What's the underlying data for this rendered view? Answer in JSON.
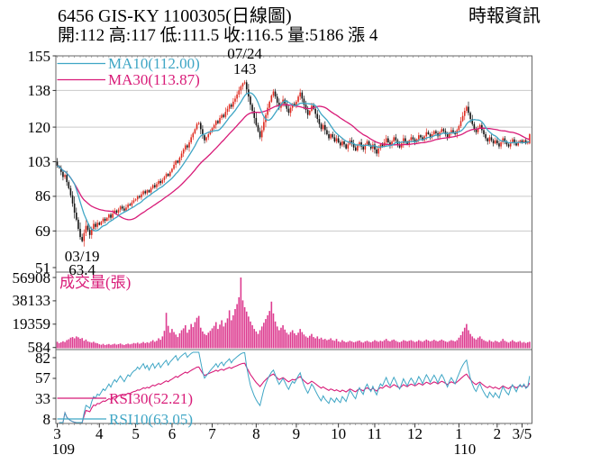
{
  "header": {
    "title": "6456  GIS-KY 1100305(日線圖)",
    "source": "時報資訊",
    "quote_line": "開:112 高:117 低:111.5 收:116.5 量:5186 漲 4"
  },
  "colors": {
    "candle_up": "#df2b20",
    "candle_down": "#141414",
    "ma10_cyan": "#3fa6c5",
    "ma30_magenta": "#d81b78",
    "volume_bar": "#dd3c90",
    "grid": "#c9c9c9",
    "border": "#666666",
    "tick": "#777777",
    "text_black": "#000000"
  },
  "chart_data": [
    {
      "type": "candlestick",
      "title": "price-pane",
      "y_ticks": [
        155,
        138,
        120,
        103,
        86,
        69,
        51
      ],
      "first_open": 103,
      "legend": [
        {
          "label": "MA10(112.00)",
          "color_key": "ma10_cyan",
          "period": 10
        },
        {
          "label": "MA30(113.87)",
          "color_key": "ma30_magenta",
          "period": 30
        }
      ],
      "annotations": [
        {
          "lines": [
            "07/24",
            "143"
          ],
          "index": 98,
          "pos": "above"
        },
        {
          "lines": [
            "03/19",
            "63.4"
          ],
          "index": 13,
          "pos": "below"
        }
      ],
      "overrides": {
        "13": {
          "low": 63.4
        },
        "98": {
          "high": 143
        },
        "247": {
          "open": 112,
          "high": 117,
          "low": 111.5,
          "close": 116.5
        }
      }
    },
    {
      "type": "bar",
      "title": "成交量(張)",
      "y_ticks": [
        56908,
        38133,
        19359,
        584
      ]
    },
    {
      "type": "line",
      "title": "rsi-pane",
      "y_ticks": [
        82,
        57,
        33,
        8
      ],
      "legend": [
        {
          "label": "RSI30(52.21)",
          "color_key": "ma30_magenta",
          "period": 30,
          "swatch_level": 33
        },
        {
          "label": "RSI10(63.05)",
          "color_key": "ma10_cyan",
          "period": 10,
          "swatch_level": 8
        }
      ]
    }
  ],
  "months": [
    {
      "label": "3",
      "year": "109",
      "closes": [
        101,
        100,
        98,
        95.5,
        96.5,
        93,
        90,
        86.5,
        82.5,
        78,
        74.5,
        70,
        66,
        64,
        68,
        71.5,
        69.5,
        67,
        70,
        72.5,
        71,
        73
      ],
      "volumes": [
        5200,
        4100,
        4800,
        5600,
        5000,
        6500,
        7200,
        8500,
        9000,
        8000,
        9500,
        8800,
        7600,
        8200,
        6000,
        7000,
        5500,
        5000,
        4500,
        5200,
        4300,
        4000
      ]
    },
    {
      "label": "4",
      "closes": [
        72,
        73.5,
        75,
        74,
        75.5,
        77,
        75.5,
        77.5,
        79,
        78,
        79.5,
        81,
        80,
        79,
        80.5,
        82,
        81.5,
        83,
        84
      ],
      "volumes": [
        3200,
        2800,
        3500,
        2600,
        3000,
        3400,
        2700,
        3100,
        3600,
        2900,
        3300,
        3800,
        3000,
        2600,
        3200,
        3700,
        3100,
        3500,
        4200
      ]
    },
    {
      "label": "5",
      "closes": [
        84.5,
        86,
        85.5,
        87,
        88.5,
        87.5,
        89,
        88,
        90,
        91.5,
        90.5,
        92,
        93.5,
        92.5,
        94,
        95.5,
        97,
        96,
        98
      ],
      "volumes": [
        3800,
        4500,
        3600,
        4200,
        5000,
        4100,
        4800,
        4300,
        5500,
        6500,
        5200,
        6000,
        8000,
        6800,
        9500,
        14000,
        28500,
        18000,
        12500
      ]
    },
    {
      "label": "6",
      "closes": [
        99.5,
        101.5,
        103.5,
        102.5,
        105,
        107,
        109,
        111,
        110,
        112.5,
        115,
        117,
        119,
        121.5,
        122,
        119,
        116,
        113.5,
        115,
        116.5,
        118
      ],
      "volumes": [
        15500,
        13000,
        11000,
        9000,
        12000,
        14500,
        16000,
        18500,
        12500,
        15000,
        19500,
        17000,
        21000,
        24500,
        26000,
        16500,
        13500,
        11500,
        10500,
        12500,
        14000
      ]
    },
    {
      "label": "7",
      "closes": [
        119.5,
        121,
        123,
        122,
        124.5,
        126,
        125,
        127.5,
        129,
        131,
        130,
        132.5,
        134,
        136,
        138,
        140,
        141.5,
        142,
        138.5,
        135,
        131,
        128,
        124.5
      ],
      "volumes": [
        16000,
        18000,
        21000,
        15500,
        19000,
        22500,
        17500,
        20500,
        24000,
        30500,
        22500,
        26500,
        31500,
        35500,
        41000,
        56908,
        38500,
        33000,
        29500,
        25500,
        21500,
        18500,
        15500
      ]
    },
    {
      "label": "8",
      "closes": [
        121,
        118,
        115,
        118.5,
        122.5,
        126,
        129.5,
        132.5,
        135.5,
        137.5,
        135,
        132,
        129.5,
        131.5,
        133.5,
        131.5,
        129,
        127,
        129.5,
        131.5,
        130.5
      ],
      "volumes": [
        13500,
        11500,
        14500,
        17500,
        20500,
        23500,
        26500,
        30000,
        37500,
        28000,
        21500,
        17500,
        14500,
        16500,
        18500,
        15000,
        12500,
        11000,
        13000,
        14500,
        12000
      ]
    },
    {
      "label": "9",
      "closes": [
        132.5,
        135,
        137,
        134,
        131,
        128.5,
        126,
        128,
        130.5,
        129,
        126.5,
        124,
        121.5,
        119,
        121,
        118.5,
        116.5,
        114.5,
        116.5,
        115,
        113,
        114.5
      ],
      "volumes": [
        10500,
        12500,
        15500,
        13000,
        11000,
        9500,
        8500,
        10000,
        11500,
        9000,
        8000,
        9500,
        7500,
        8500,
        7000,
        7500,
        6500,
        7000,
        8000,
        6500,
        6000,
        7500
      ]
    },
    {
      "label": "10",
      "closes": [
        112.5,
        111,
        113,
        111.5,
        109.5,
        111.5,
        113.5,
        112,
        110,
        108.5,
        111,
        112.5,
        110.5,
        109,
        111.5,
        113,
        111,
        109.5,
        111.5
      ],
      "volumes": [
        5500,
        5000,
        6500,
        5500,
        4800,
        5200,
        6000,
        5500,
        4800,
        5200,
        5800,
        6200,
        5000,
        4500,
        5500,
        6000,
        5200,
        4800,
        5500
      ]
    },
    {
      "label": "11",
      "closes": [
        109,
        107,
        109.5,
        111.5,
        110.5,
        112.5,
        114.5,
        112.5,
        111,
        113,
        115,
        113.5,
        111.5,
        110,
        112,
        114.5,
        113,
        111.5,
        113.5,
        115,
        114
      ],
      "volumes": [
        6500,
        5800,
        5200,
        6000,
        5500,
        6500,
        7500,
        6000,
        5500,
        6500,
        7000,
        6000,
        5200,
        4800,
        5500,
        6500,
        6000,
        5500,
        6000,
        6500,
        5800
      ]
    },
    {
      "label": "12",
      "closes": [
        112.5,
        114,
        116,
        115,
        113.5,
        115.5,
        117.5,
        116.5,
        115,
        116.5,
        118,
        117,
        115.5,
        117.5,
        119,
        118,
        116.5,
        115,
        117,
        118.5,
        117.5,
        116.5,
        118.5
      ],
      "volumes": [
        5000,
        5500,
        6500,
        5800,
        5200,
        6000,
        7000,
        6200,
        5500,
        6000,
        6800,
        6000,
        5500,
        6200,
        7000,
        6200,
        5500,
        5000,
        5800,
        6500,
        6000,
        5500,
        6500
      ]
    },
    {
      "label": "1",
      "year": "110",
      "closes": [
        120.5,
        123,
        125.5,
        128,
        130,
        127,
        124,
        121.5,
        119,
        117.5,
        119.5,
        121,
        118.5,
        116.5,
        114.5,
        113,
        115,
        113.5,
        112,
        113.5
      ],
      "volumes": [
        8500,
        10500,
        13500,
        16500,
        19500,
        14500,
        11500,
        9500,
        8000,
        7000,
        8500,
        9500,
        7500,
        6500,
        5800,
        5200,
        6500,
        5500,
        5000,
        6000
      ]
    },
    {
      "label": "2",
      "closes": [
        112,
        110.5,
        112.5,
        114.5,
        113,
        111.5,
        110.5,
        112.5,
        114,
        112.5,
        111,
        112.5,
        113.5
      ],
      "volumes": [
        5500,
        4800,
        5800,
        7500,
        6000,
        5200,
        4500,
        5500,
        6500,
        5500,
        4800,
        5200,
        5800
      ]
    },
    {
      "label": "3/5",
      "closes": [
        112.5,
        113.5,
        112,
        112.5,
        116.5
      ],
      "volumes": [
        4500,
        5000,
        4200,
        4800,
        5186
      ]
    }
  ]
}
